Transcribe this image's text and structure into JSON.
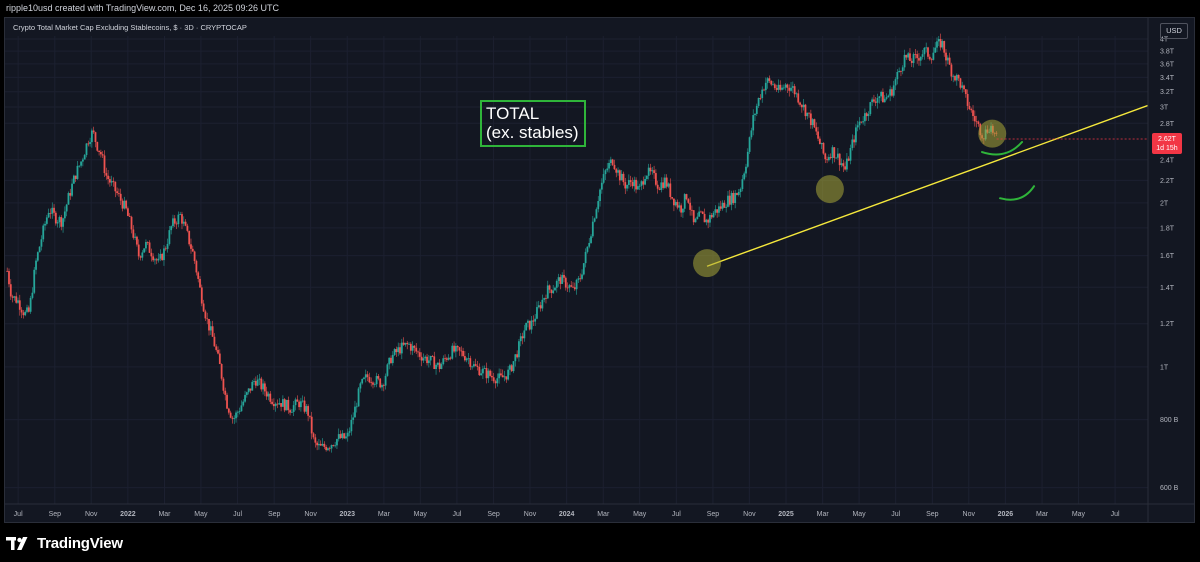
{
  "header": {
    "caption": "ripple10usd created with TradingView.com, Dec 16, 2025 09:26 UTC"
  },
  "symbol": {
    "title": "Crypto Total Market Cap Excluding Stablecoins, $ · 3D · CRYPTOCAP",
    "currency": "USD"
  },
  "annotation": {
    "line1": "TOTAL",
    "line2": "(ex. stables)"
  },
  "price_tag": {
    "price": "2.62T",
    "countdown": "1d 15h"
  },
  "branding": {
    "logo_text": "TradingView"
  },
  "colors": {
    "background": "#131722",
    "up": "#26a69a",
    "down": "#ef5350",
    "trendline": "#f5e83c",
    "highlight": "#a9a838",
    "marker": "#2fb53a",
    "price_tag": "#f23645"
  },
  "chart_data": {
    "type": "candlestick",
    "title": "Crypto Total Market Cap Excluding Stablecoins, $ · 3D · CRYPTOCAP",
    "y_scale": "log",
    "y_ticks": [
      {
        "label": "4T",
        "value": 4.0
      },
      {
        "label": "3.8T",
        "value": 3.8
      },
      {
        "label": "3.6T",
        "value": 3.6
      },
      {
        "label": "3.4T",
        "value": 3.4
      },
      {
        "label": "3.2T",
        "value": 3.2
      },
      {
        "label": "3T",
        "value": 3.0
      },
      {
        "label": "2.8T",
        "value": 2.8
      },
      {
        "label": "2.4T",
        "value": 2.4
      },
      {
        "label": "2.2T",
        "value": 2.2
      },
      {
        "label": "2T",
        "value": 2.0
      },
      {
        "label": "1.8T",
        "value": 1.8
      },
      {
        "label": "1.6T",
        "value": 1.6
      },
      {
        "label": "1.4T",
        "value": 1.4
      },
      {
        "label": "1.2T",
        "value": 1.2
      },
      {
        "label": "1T",
        "value": 1.0
      },
      {
        "label": "800 B",
        "value": 0.8
      },
      {
        "label": "600 B",
        "value": 0.6
      }
    ],
    "x_ticks": [
      {
        "label": "Jul",
        "t": 2021.5
      },
      {
        "label": "Sep",
        "t": 2021.667
      },
      {
        "label": "Nov",
        "t": 2021.833
      },
      {
        "label": "2022",
        "t": 2022.0
      },
      {
        "label": "Mar",
        "t": 2022.167
      },
      {
        "label": "May",
        "t": 2022.333
      },
      {
        "label": "Jul",
        "t": 2022.5
      },
      {
        "label": "Sep",
        "t": 2022.667
      },
      {
        "label": "Nov",
        "t": 2022.833
      },
      {
        "label": "2023",
        "t": 2023.0
      },
      {
        "label": "Mar",
        "t": 2023.167
      },
      {
        "label": "May",
        "t": 2023.333
      },
      {
        "label": "Jul",
        "t": 2023.5
      },
      {
        "label": "Sep",
        "t": 2023.667
      },
      {
        "label": "Nov",
        "t": 2023.833
      },
      {
        "label": "2024",
        "t": 2024.0
      },
      {
        "label": "Mar",
        "t": 2024.167
      },
      {
        "label": "May",
        "t": 2024.333
      },
      {
        "label": "Jul",
        "t": 2024.5
      },
      {
        "label": "Sep",
        "t": 2024.667
      },
      {
        "label": "Nov",
        "t": 2024.833
      },
      {
        "label": "2025",
        "t": 2025.0
      },
      {
        "label": "Mar",
        "t": 2025.167
      },
      {
        "label": "May",
        "t": 2025.333
      },
      {
        "label": "Jul",
        "t": 2025.5
      },
      {
        "label": "Sep",
        "t": 2025.667
      },
      {
        "label": "Nov",
        "t": 2025.833
      },
      {
        "label": "2026",
        "t": 2026.0
      },
      {
        "label": "Mar",
        "t": 2026.167
      },
      {
        "label": "May",
        "t": 2026.333
      },
      {
        "label": "Jul",
        "t": 2026.5
      }
    ],
    "x_range": [
      2021.44,
      2026.65
    ],
    "y_range": [
      0.56,
      4.05
    ],
    "price_path": [
      [
        2021.45,
        1.5
      ],
      [
        2021.47,
        1.35
      ],
      [
        2021.5,
        1.32
      ],
      [
        2021.53,
        1.25
      ],
      [
        2021.55,
        1.26
      ],
      [
        2021.58,
        1.55
      ],
      [
        2021.61,
        1.75
      ],
      [
        2021.64,
        1.95
      ],
      [
        2021.67,
        1.88
      ],
      [
        2021.7,
        1.85
      ],
      [
        2021.73,
        2.05
      ],
      [
        2021.76,
        2.25
      ],
      [
        2021.79,
        2.4
      ],
      [
        2021.82,
        2.62
      ],
      [
        2021.84,
        2.7
      ],
      [
        2021.86,
        2.55
      ],
      [
        2021.88,
        2.45
      ],
      [
        2021.9,
        2.25
      ],
      [
        2021.93,
        2.15
      ],
      [
        2021.96,
        2.05
      ],
      [
        2021.99,
        1.95
      ],
      [
        2022.02,
        1.78
      ],
      [
        2022.05,
        1.6
      ],
      [
        2022.08,
        1.68
      ],
      [
        2022.11,
        1.62
      ],
      [
        2022.14,
        1.55
      ],
      [
        2022.17,
        1.65
      ],
      [
        2022.2,
        1.82
      ],
      [
        2022.24,
        1.9
      ],
      [
        2022.27,
        1.75
      ],
      [
        2022.3,
        1.6
      ],
      [
        2022.33,
        1.38
      ],
      [
        2022.36,
        1.22
      ],
      [
        2022.39,
        1.12
      ],
      [
        2022.42,
        1.0
      ],
      [
        2022.45,
        0.86
      ],
      [
        2022.48,
        0.8
      ],
      [
        2022.51,
        0.84
      ],
      [
        2022.55,
        0.9
      ],
      [
        2022.58,
        0.95
      ],
      [
        2022.62,
        0.91
      ],
      [
        2022.66,
        0.87
      ],
      [
        2022.7,
        0.86
      ],
      [
        2022.74,
        0.84
      ],
      [
        2022.78,
        0.86
      ],
      [
        2022.82,
        0.83
      ],
      [
        2022.85,
        0.72
      ],
      [
        2022.88,
        0.71
      ],
      [
        2022.92,
        0.72
      ],
      [
        2022.96,
        0.74
      ],
      [
        2023.0,
        0.74
      ],
      [
        2023.03,
        0.82
      ],
      [
        2023.06,
        0.92
      ],
      [
        2023.09,
        0.96
      ],
      [
        2023.12,
        0.95
      ],
      [
        2023.16,
        0.93
      ],
      [
        2023.2,
        1.04
      ],
      [
        2023.24,
        1.08
      ],
      [
        2023.28,
        1.1
      ],
      [
        2023.31,
        1.07
      ],
      [
        2023.35,
        1.04
      ],
      [
        2023.39,
        1.02
      ],
      [
        2023.42,
        1.0
      ],
      [
        2023.45,
        1.04
      ],
      [
        2023.48,
        1.07
      ],
      [
        2023.52,
        1.06
      ],
      [
        2023.55,
        1.04
      ],
      [
        2023.58,
        1.0
      ],
      [
        2023.62,
        0.98
      ],
      [
        2023.66,
        0.96
      ],
      [
        2023.7,
        0.95
      ],
      [
        2023.74,
        0.98
      ],
      [
        2023.78,
        1.08
      ],
      [
        2023.81,
        1.18
      ],
      [
        2023.84,
        1.2
      ],
      [
        2023.88,
        1.3
      ],
      [
        2023.91,
        1.38
      ],
      [
        2023.94,
        1.4
      ],
      [
        2023.97,
        1.45
      ],
      [
        2024.0,
        1.42
      ],
      [
        2024.03,
        1.38
      ],
      [
        2024.06,
        1.45
      ],
      [
        2024.09,
        1.62
      ],
      [
        2024.12,
        1.85
      ],
      [
        2024.15,
        2.1
      ],
      [
        2024.18,
        2.3
      ],
      [
        2024.21,
        2.4
      ],
      [
        2024.24,
        2.25
      ],
      [
        2024.27,
        2.15
      ],
      [
        2024.3,
        2.2
      ],
      [
        2024.33,
        2.1
      ],
      [
        2024.36,
        2.28
      ],
      [
        2024.39,
        2.25
      ],
      [
        2024.42,
        2.15
      ],
      [
        2024.45,
        2.2
      ],
      [
        2024.48,
        2.05
      ],
      [
        2024.52,
        1.95
      ],
      [
        2024.55,
        2.08
      ],
      [
        2024.58,
        1.82
      ],
      [
        2024.61,
        1.9
      ],
      [
        2024.64,
        1.85
      ],
      [
        2024.67,
        1.92
      ],
      [
        2024.7,
        1.96
      ],
      [
        2024.73,
        2.02
      ],
      [
        2024.76,
        2.05
      ],
      [
        2024.79,
        2.12
      ],
      [
        2024.82,
        2.4
      ],
      [
        2024.85,
        2.85
      ],
      [
        2024.88,
        3.15
      ],
      [
        2024.91,
        3.35
      ],
      [
        2024.94,
        3.3
      ],
      [
        2024.97,
        3.2
      ],
      [
        2025.0,
        3.3
      ],
      [
        2025.03,
        3.25
      ],
      [
        2025.06,
        3.1
      ],
      [
        2025.09,
        2.95
      ],
      [
        2025.12,
        2.8
      ],
      [
        2025.15,
        2.6
      ],
      [
        2025.18,
        2.4
      ],
      [
        2025.21,
        2.5
      ],
      [
        2025.24,
        2.42
      ],
      [
        2025.27,
        2.3
      ],
      [
        2025.3,
        2.55
      ],
      [
        2025.33,
        2.8
      ],
      [
        2025.36,
        2.9
      ],
      [
        2025.39,
        3.05
      ],
      [
        2025.42,
        3.15
      ],
      [
        2025.45,
        3.1
      ],
      [
        2025.48,
        3.2
      ],
      [
        2025.51,
        3.45
      ],
      [
        2025.54,
        3.7
      ],
      [
        2025.57,
        3.65
      ],
      [
        2025.6,
        3.7
      ],
      [
        2025.63,
        3.8
      ],
      [
        2025.66,
        3.72
      ],
      [
        2025.68,
        3.85
      ],
      [
        2025.71,
        3.95
      ],
      [
        2025.73,
        3.7
      ],
      [
        2025.76,
        3.45
      ],
      [
        2025.79,
        3.35
      ],
      [
        2025.82,
        3.1
      ],
      [
        2025.85,
        2.9
      ],
      [
        2025.88,
        2.75
      ],
      [
        2025.9,
        2.66
      ],
      [
        2025.93,
        2.78
      ],
      [
        2025.96,
        2.62
      ]
    ],
    "trendline": {
      "from": [
        2024.64,
        1.53
      ],
      "to": [
        2026.65,
        3.02
      ]
    },
    "highlights": [
      [
        2024.64,
        1.55
      ],
      [
        2025.2,
        2.12
      ],
      [
        2025.94,
        2.68
      ]
    ],
    "last_price": 2.62
  }
}
